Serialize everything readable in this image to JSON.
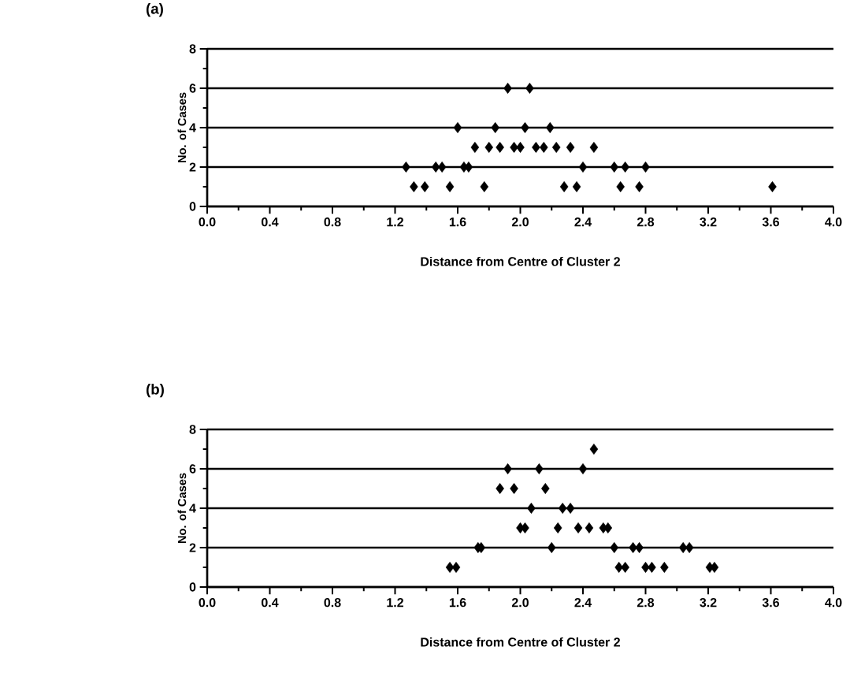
{
  "chart_data": [
    {
      "type": "scatter",
      "title": "(a)",
      "xlabel": "Distance from Centre of Cluster 2",
      "ylabel": "No. of Cases",
      "xlim": [
        0,
        4.0
      ],
      "ylim": [
        0,
        8
      ],
      "xticks": [
        {
          "value": 0,
          "label": "0.0"
        },
        0.4,
        0.8,
        1.2,
        1.6,
        {
          "value": 2,
          "label": "2.0"
        },
        2.4,
        2.8,
        3.2,
        3.6,
        {
          "value": 4,
          "label": "4.0"
        }
      ],
      "yticks": [
        0,
        2,
        4,
        6,
        8
      ],
      "grid": "y",
      "marker": "diamond",
      "series": [
        {
          "color": "#000000",
          "x": [
            1.92,
            2.06,
            1.6,
            1.84,
            2.03,
            2.19,
            1.71,
            1.8,
            1.87,
            1.96,
            2.0,
            2.1,
            2.15,
            2.23,
            2.32,
            2.47,
            1.27,
            1.46,
            1.5,
            1.64,
            1.67,
            2.4,
            2.6,
            2.67,
            2.8,
            1.32,
            1.39,
            1.55,
            1.77,
            2.28,
            2.36,
            2.64,
            2.76,
            3.61
          ],
          "values": [
            6,
            6,
            4,
            4,
            4,
            4,
            3,
            3,
            3,
            3,
            3,
            3,
            3,
            3,
            3,
            3,
            2,
            2,
            2,
            2,
            2,
            2,
            2,
            2,
            2,
            1,
            1,
            1,
            1,
            1,
            1,
            1,
            1,
            1
          ]
        }
      ]
    },
    {
      "type": "scatter",
      "title": "(b)",
      "xlabel": "Distance from Centre of Cluster 2",
      "ylabel": "No. of Cases",
      "xlim": [
        0,
        4.0
      ],
      "ylim": [
        0,
        8
      ],
      "xticks": [
        {
          "value": 0,
          "label": "0.0"
        },
        0.4,
        0.8,
        1.2,
        1.6,
        {
          "value": 2,
          "label": "2.0"
        },
        2.4,
        2.8,
        3.2,
        3.6,
        {
          "value": 4,
          "label": "4.0"
        }
      ],
      "yticks": [
        0,
        2,
        4,
        6,
        8
      ],
      "grid": "y",
      "marker": "diamond",
      "series": [
        {
          "color": "#000000",
          "x": [
            2.47,
            1.92,
            2.12,
            2.4,
            1.87,
            1.96,
            2.16,
            2.07,
            2.27,
            2.32,
            2.0,
            2.03,
            2.24,
            2.37,
            2.44,
            2.53,
            2.56,
            1.73,
            1.75,
            2.2,
            2.6,
            2.72,
            2.76,
            3.04,
            3.08,
            1.55,
            1.59,
            2.63,
            2.67,
            2.8,
            2.84,
            2.92,
            3.21,
            3.24
          ],
          "values": [
            7,
            6,
            6,
            6,
            5,
            5,
            5,
            4,
            4,
            4,
            3,
            3,
            3,
            3,
            3,
            3,
            3,
            2,
            2,
            2,
            2,
            2,
            2,
            2,
            2,
            1,
            1,
            1,
            1,
            1,
            1,
            1,
            1,
            1
          ]
        }
      ]
    }
  ]
}
